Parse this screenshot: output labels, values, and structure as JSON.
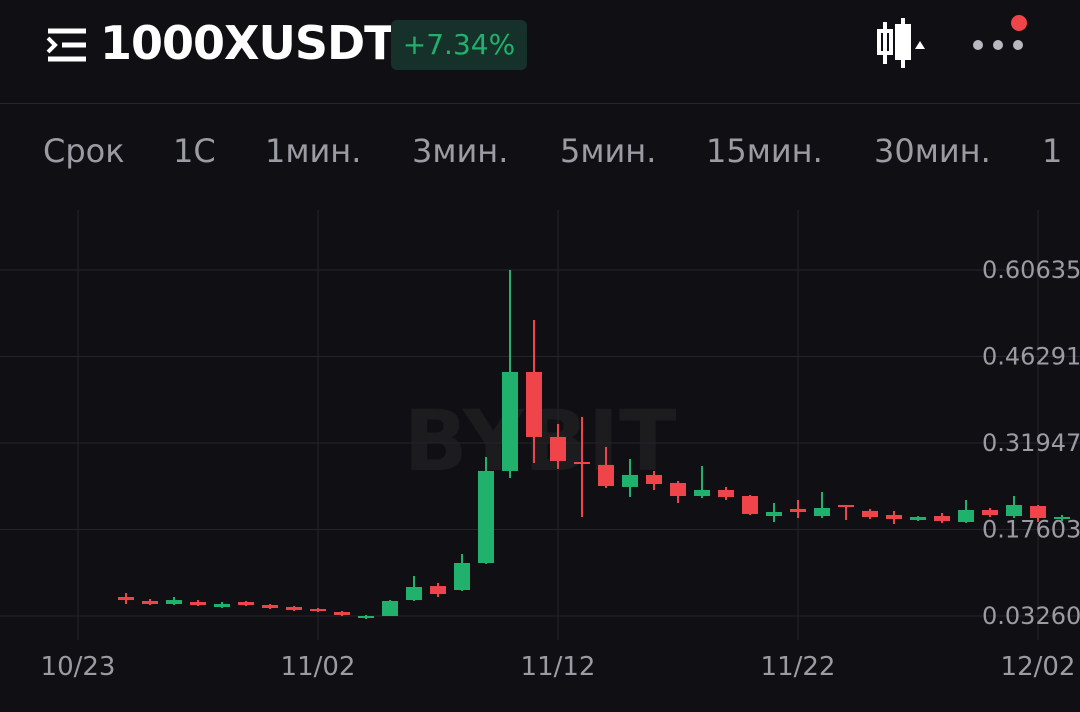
{
  "header": {
    "symbol": "1000XUSDT",
    "change": "+7.34%"
  },
  "tabs": [
    "Срок",
    "1С",
    "1мин.",
    "3мин.",
    "5мин.",
    "15мин.",
    "30мин.",
    "1"
  ],
  "chart_data": {
    "type": "candlestick",
    "watermark": "BYBIT",
    "x": [
      "10/25",
      "10/26",
      "10/27",
      "10/28",
      "10/29",
      "10/30",
      "10/31",
      "11/01",
      "11/02",
      "11/03",
      "11/04",
      "11/05",
      "11/06",
      "11/07",
      "11/08",
      "11/09",
      "11/10",
      "11/11",
      "11/12",
      "11/13",
      "11/14",
      "11/15",
      "11/16",
      "11/17",
      "11/18",
      "11/19",
      "11/20",
      "11/21",
      "11/22",
      "11/23",
      "11/24",
      "11/25",
      "11/26",
      "11/27",
      "11/28",
      "11/29",
      "11/30",
      "12/01",
      "12/02",
      "12/03"
    ],
    "open": [
      0.0641,
      0.0575,
      0.0525,
      0.0558,
      0.0475,
      0.0558,
      0.0508,
      0.0475,
      0.0442,
      0.0392,
      0.0293,
      0.0326,
      0.0591,
      0.0823,
      0.0757,
      0.1205,
      0.2731,
      0.4373,
      0.3295,
      0.288,
      0.2831,
      0.2466,
      0.2665,
      0.2532,
      0.2316,
      0.2416,
      0.2316,
      0.1984,
      0.2101,
      0.1984,
      0.2167,
      0.2068,
      0.2001,
      0.1918,
      0.1984,
      0.1885,
      0.2084,
      0.1984,
      0.215,
      0.1935
    ],
    "high": [
      0.0707,
      0.0608,
      0.0641,
      0.0591,
      0.0558,
      0.0575,
      0.0525,
      0.0492,
      0.0459,
      0.0409,
      0.0343,
      0.0591,
      0.0989,
      0.0874,
      0.1354,
      0.2963,
      0.6063,
      0.5234,
      0.3511,
      0.3627,
      0.3129,
      0.293,
      0.2731,
      0.2565,
      0.2814,
      0.2466,
      0.2333,
      0.22,
      0.225,
      0.2383,
      0.2167,
      0.2101,
      0.2068,
      0.1984,
      0.2034,
      0.225,
      0.2117,
      0.2316,
      0.2167,
      0.2001
    ],
    "low": [
      0.0525,
      0.0508,
      0.0508,
      0.0492,
      0.0459,
      0.0492,
      0.0442,
      0.0409,
      0.0393,
      0.0326,
      0.0276,
      0.0326,
      0.0575,
      0.0641,
      0.0741,
      0.1189,
      0.2615,
      0.2864,
      0.2765,
      0.1968,
      0.2449,
      0.23,
      0.2416,
      0.22,
      0.2283,
      0.225,
      0.2001,
      0.1885,
      0.1951,
      0.1951,
      0.1918,
      0.1935,
      0.1852,
      0.1902,
      0.1869,
      0.1869,
      0.1968,
      0.1951,
      0.1885,
      0.1902
    ],
    "close": [
      0.0591,
      0.0525,
      0.0591,
      0.0508,
      0.0525,
      0.0508,
      0.0459,
      0.0426,
      0.0409,
      0.0343,
      0.0326,
      0.0575,
      0.0807,
      0.0691,
      0.1205,
      0.2731,
      0.4373,
      0.3295,
      0.2897,
      0.2847,
      0.2482,
      0.2665,
      0.2515,
      0.2316,
      0.2416,
      0.23,
      0.2018,
      0.2051,
      0.2051,
      0.2117,
      0.2134,
      0.1968,
      0.1935,
      0.1968,
      0.1902,
      0.2084,
      0.2001,
      0.2167,
      0.1951,
      0.1968
    ],
    "xlim": [
      "10/23",
      "12/03"
    ],
    "xticks": [
      "10/23",
      "11/02",
      "11/12",
      "11/22",
      "12/02"
    ],
    "ylim": [
      -0.0072,
      0.7059
    ],
    "yticks": [
      {
        "value": 0.0326,
        "label": "0.03260"
      },
      0.17603,
      0.31947,
      0.46291,
      0.60635
    ],
    "grid": true,
    "up_color": "#20b26c",
    "down_color": "#ef454a"
  }
}
